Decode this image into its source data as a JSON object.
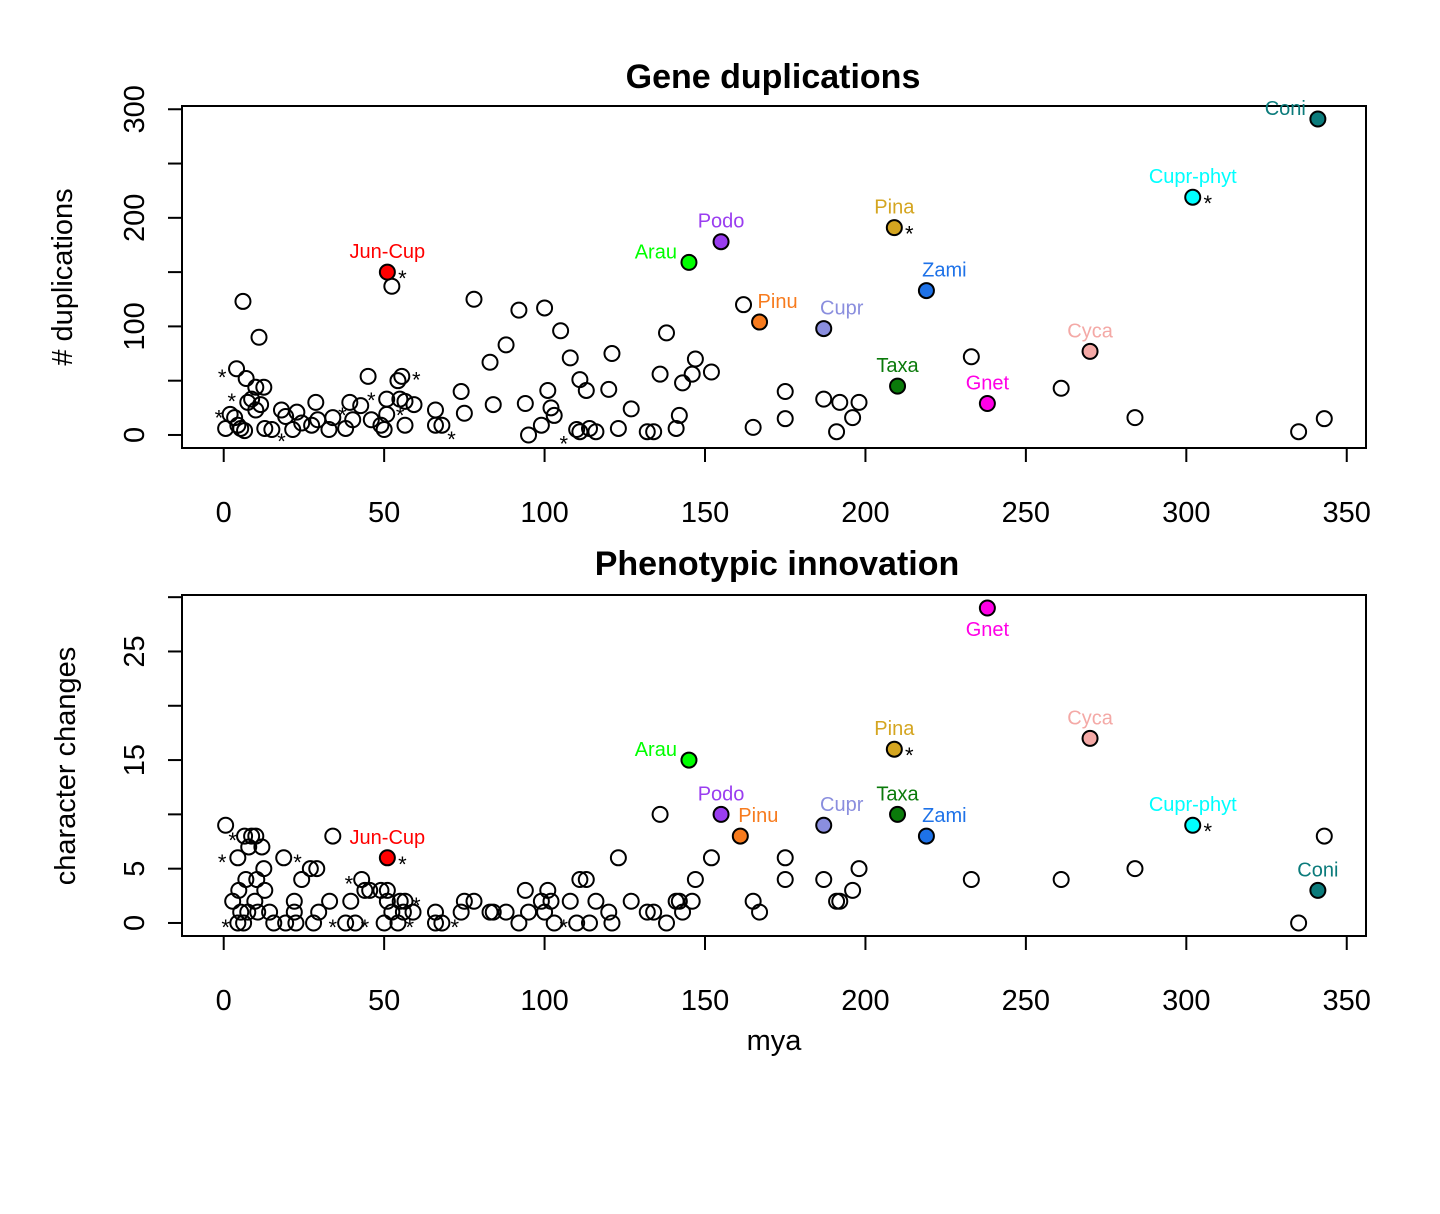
{
  "chart_data": [
    {
      "type": "scatter",
      "title": "Gene duplications",
      "xlabel": "",
      "ylabel": "# duplications",
      "xlim": [
        -13,
        356
      ],
      "ylim": [
        -12,
        303
      ],
      "xticks": [
        "0",
        "50",
        "100",
        "150",
        "200",
        "250",
        "300",
        "350"
      ],
      "yticks": [
        "0",
        "100",
        "200",
        "300"
      ],
      "yminor": [
        50,
        150,
        250
      ],
      "grid": false,
      "labeled_points": [
        {
          "label": "Jun-Cup",
          "x": 51,
          "y": 150,
          "color": "#FF0000",
          "star": true,
          "label_pos": "above"
        },
        {
          "label": "Arau",
          "x": 145,
          "y": 159,
          "color": "#00FF00",
          "star": false,
          "label_pos": "left"
        },
        {
          "label": "Podo",
          "x": 155,
          "y": 178,
          "color": "#9A3DF0",
          "star": false,
          "label_pos": "above"
        },
        {
          "label": "Pinu",
          "x": 167,
          "y": 104,
          "color": "#F77B1E",
          "star": false,
          "label_pos": "above-right"
        },
        {
          "label": "Cupr",
          "x": 187,
          "y": 98,
          "color": "#8A8EDE",
          "star": false,
          "label_pos": "above-right"
        },
        {
          "label": "Pina",
          "x": 209,
          "y": 191,
          "color": "#D4A520",
          "star": true,
          "label_pos": "above"
        },
        {
          "label": "Zami",
          "x": 219,
          "y": 133,
          "color": "#1E72E8",
          "star": false,
          "label_pos": "above-right"
        },
        {
          "label": "Taxa",
          "x": 210,
          "y": 45,
          "color": "#0A7A0A",
          "star": false,
          "label_pos": "above"
        },
        {
          "label": "Gnet",
          "x": 238,
          "y": 29,
          "color": "#FF00E6",
          "star": false,
          "label_pos": "above"
        },
        {
          "label": "Cyca",
          "x": 270,
          "y": 77,
          "color": "#F4A9A6",
          "star": false,
          "label_pos": "above"
        },
        {
          "label": "Cupr-phyt",
          "x": 302,
          "y": 219,
          "color": "#00FFFF",
          "star": true,
          "label_pos": "above"
        },
        {
          "label": "Coni",
          "x": 341,
          "y": 291,
          "color": "#0B7B7B",
          "star": false,
          "label_pos": "left"
        }
      ],
      "points": [
        [
          6,
          123
        ],
        [
          11,
          90
        ],
        [
          4,
          61
        ],
        [
          7,
          52
        ],
        [
          10,
          44
        ],
        [
          12.5,
          44
        ],
        [
          0.6,
          6
        ],
        [
          2,
          19
        ],
        [
          3.4,
          16
        ],
        [
          4.4,
          9
        ],
        [
          5.3,
          6
        ],
        [
          6.5,
          4
        ],
        [
          7.5,
          30
        ],
        [
          8.7,
          33
        ],
        [
          10,
          23
        ],
        [
          11.5,
          28
        ],
        [
          12.8,
          6
        ],
        [
          15,
          5
        ],
        [
          18,
          23
        ],
        [
          19.3,
          17
        ],
        [
          21.5,
          5
        ],
        [
          22.8,
          21
        ],
        [
          24.3,
          11
        ],
        [
          27.4,
          9
        ],
        [
          28.7,
          30
        ],
        [
          29.3,
          14
        ],
        [
          32.8,
          5
        ],
        [
          34,
          16
        ],
        [
          38,
          6
        ],
        [
          39.3,
          30
        ],
        [
          40.2,
          14
        ],
        [
          42.7,
          27
        ],
        [
          45,
          54
        ],
        [
          46,
          14
        ],
        [
          49,
          9
        ],
        [
          50,
          5
        ],
        [
          50.8,
          33
        ],
        [
          50.8,
          19
        ],
        [
          52.4,
          137
        ],
        [
          54.3,
          50
        ],
        [
          55.5,
          54
        ],
        [
          54.9,
          33
        ],
        [
          56.5,
          9
        ],
        [
          56.5,
          31
        ],
        [
          59.3,
          28
        ],
        [
          66,
          23
        ],
        [
          66,
          9
        ],
        [
          68,
          9
        ],
        [
          74,
          40
        ],
        [
          75,
          20
        ],
        [
          78,
          125
        ],
        [
          83,
          67
        ],
        [
          84,
          28
        ],
        [
          88,
          83
        ],
        [
          92,
          115
        ],
        [
          94,
          29
        ],
        [
          95,
          0
        ],
        [
          99,
          9
        ],
        [
          100,
          117
        ],
        [
          101,
          41
        ],
        [
          102,
          25
        ],
        [
          103,
          18
        ],
        [
          105,
          96
        ],
        [
          108,
          71
        ],
        [
          110,
          5
        ],
        [
          111,
          3
        ],
        [
          111,
          51
        ],
        [
          113,
          41
        ],
        [
          114,
          6
        ],
        [
          116,
          3
        ],
        [
          120,
          42
        ],
        [
          121,
          75
        ],
        [
          123,
          6
        ],
        [
          127,
          24
        ],
        [
          132,
          3
        ],
        [
          134,
          3
        ],
        [
          136,
          56
        ],
        [
          138,
          94
        ],
        [
          141,
          6
        ],
        [
          142,
          18
        ],
        [
          143,
          48
        ],
        [
          146,
          56
        ],
        [
          147,
          70
        ],
        [
          152,
          58
        ],
        [
          162,
          120
        ],
        [
          165,
          7
        ],
        [
          175,
          15
        ],
        [
          175,
          40
        ],
        [
          187,
          33
        ],
        [
          191,
          3
        ],
        [
          192,
          30
        ],
        [
          196,
          16
        ],
        [
          198,
          30
        ],
        [
          233,
          72
        ],
        [
          261,
          43
        ],
        [
          284,
          16
        ],
        [
          335,
          3
        ],
        [
          343,
          15
        ]
      ],
      "stars": [
        [
          -0.5,
          57
        ],
        [
          -1.5,
          20
        ],
        [
          2.5,
          35
        ],
        [
          18,
          -2
        ],
        [
          37,
          22
        ],
        [
          46,
          36
        ],
        [
          60,
          55
        ],
        [
          55,
          22
        ],
        [
          71,
          0
        ],
        [
          106,
          -4
        ]
      ]
    },
    {
      "type": "scatter",
      "title": "Phenotypic innovation",
      "xlabel": "mya",
      "ylabel": "character changes",
      "xlim": [
        -13,
        356
      ],
      "ylim": [
        -1.2,
        30.2
      ],
      "xticks": [
        "0",
        "50",
        "100",
        "150",
        "200",
        "250",
        "300",
        "350"
      ],
      "yticks": [
        "0",
        "5",
        "15",
        "25"
      ],
      "yminor": [
        10,
        20,
        30
      ],
      "grid": false,
      "labeled_points": [
        {
          "label": "Jun-Cup",
          "x": 51,
          "y": 6,
          "color": "#FF0000",
          "star": true,
          "label_pos": "above"
        },
        {
          "label": "Arau",
          "x": 145,
          "y": 15,
          "color": "#00FF00",
          "star": false,
          "label_pos": "left"
        },
        {
          "label": "Podo",
          "x": 155,
          "y": 10,
          "color": "#9A3DF0",
          "star": false,
          "label_pos": "above"
        },
        {
          "label": "Pinu",
          "x": 161,
          "y": 8,
          "color": "#F77B1E",
          "star": false,
          "label_pos": "above-right"
        },
        {
          "label": "Cupr",
          "x": 187,
          "y": 9,
          "color": "#8A8EDE",
          "star": false,
          "label_pos": "above-right"
        },
        {
          "label": "Pina",
          "x": 209,
          "y": 16,
          "color": "#D4A520",
          "star": true,
          "label_pos": "above"
        },
        {
          "label": "Taxa",
          "x": 210,
          "y": 10,
          "color": "#0A7A0A",
          "star": false,
          "label_pos": "above"
        },
        {
          "label": "Zami",
          "x": 219,
          "y": 8,
          "color": "#1E72E8",
          "star": false,
          "label_pos": "above-right"
        },
        {
          "label": "Gnet",
          "x": 238,
          "y": 29,
          "color": "#FF00E6",
          "star": false,
          "label_pos": "below"
        },
        {
          "label": "Cyca",
          "x": 270,
          "y": 17,
          "color": "#F4A9A6",
          "star": false,
          "label_pos": "above"
        },
        {
          "label": "Cupr-phyt",
          "x": 302,
          "y": 9,
          "color": "#00FFFF",
          "star": true,
          "label_pos": "above"
        },
        {
          "label": "Coni",
          "x": 341,
          "y": 3,
          "color": "#0B7B7B",
          "star": false,
          "label_pos": "above"
        }
      ],
      "points": [
        [
          0.6,
          9
        ],
        [
          4.4,
          6
        ],
        [
          6.5,
          8
        ],
        [
          8.7,
          8
        ],
        [
          10,
          8
        ],
        [
          7.8,
          7
        ],
        [
          11.9,
          7
        ],
        [
          12.5,
          5
        ],
        [
          6.9,
          4
        ],
        [
          10.3,
          4
        ],
        [
          4.7,
          3
        ],
        [
          12.8,
          3
        ],
        [
          2.8,
          2
        ],
        [
          9.7,
          2
        ],
        [
          5.3,
          1
        ],
        [
          7.5,
          1
        ],
        [
          10.6,
          1
        ],
        [
          14.3,
          1
        ],
        [
          4.4,
          0
        ],
        [
          6.2,
          0
        ],
        [
          15.6,
          0
        ],
        [
          19.3,
          0
        ],
        [
          22.5,
          0
        ],
        [
          18.7,
          6
        ],
        [
          22,
          2
        ],
        [
          22,
          1
        ],
        [
          24.3,
          4
        ],
        [
          27,
          5
        ],
        [
          29,
          5
        ],
        [
          29.6,
          1
        ],
        [
          28,
          0
        ],
        [
          33,
          2
        ],
        [
          34,
          8
        ],
        [
          38,
          0
        ],
        [
          39.6,
          2
        ],
        [
          41,
          0
        ],
        [
          43,
          4
        ],
        [
          44,
          3
        ],
        [
          45.5,
          3
        ],
        [
          50,
          0
        ],
        [
          49,
          3
        ],
        [
          51,
          3
        ],
        [
          51,
          2
        ],
        [
          52.4,
          1
        ],
        [
          54.3,
          0
        ],
        [
          55,
          2
        ],
        [
          56,
          1
        ],
        [
          56.5,
          2
        ],
        [
          59,
          1
        ],
        [
          66,
          1
        ],
        [
          66,
          0
        ],
        [
          68,
          0
        ],
        [
          74,
          1
        ],
        [
          75,
          2
        ],
        [
          78,
          2
        ],
        [
          83,
          1
        ],
        [
          84,
          1
        ],
        [
          88,
          1
        ],
        [
          92,
          0
        ],
        [
          94,
          3
        ],
        [
          95,
          1
        ],
        [
          99,
          2
        ],
        [
          100,
          1
        ],
        [
          101,
          3
        ],
        [
          102,
          2
        ],
        [
          103,
          0
        ],
        [
          108,
          2
        ],
        [
          110,
          0
        ],
        [
          111,
          4
        ],
        [
          113,
          4
        ],
        [
          114,
          0
        ],
        [
          116,
          2
        ],
        [
          120,
          1
        ],
        [
          121,
          0
        ],
        [
          123,
          6
        ],
        [
          127,
          2
        ],
        [
          132,
          1
        ],
        [
          134,
          1
        ],
        [
          136,
          10
        ],
        [
          138,
          0
        ],
        [
          141,
          2
        ],
        [
          142,
          2
        ],
        [
          143,
          1
        ],
        [
          146,
          2
        ],
        [
          147,
          4
        ],
        [
          152,
          6
        ],
        [
          165,
          2
        ],
        [
          167,
          1
        ],
        [
          175,
          6
        ],
        [
          175,
          4
        ],
        [
          187,
          4
        ],
        [
          191,
          2
        ],
        [
          192,
          2
        ],
        [
          196,
          3
        ],
        [
          198,
          5
        ],
        [
          233,
          4
        ],
        [
          261,
          4
        ],
        [
          284,
          5
        ],
        [
          335,
          0
        ],
        [
          343,
          8
        ]
      ],
      "stars": [
        [
          -0.5,
          6
        ],
        [
          2.8,
          8
        ],
        [
          0.6,
          0
        ],
        [
          23,
          6
        ],
        [
          39,
          4
        ],
        [
          34,
          0
        ],
        [
          44,
          0
        ],
        [
          60,
          2
        ],
        [
          58,
          0
        ],
        [
          72,
          0
        ],
        [
          106,
          0
        ]
      ]
    }
  ]
}
